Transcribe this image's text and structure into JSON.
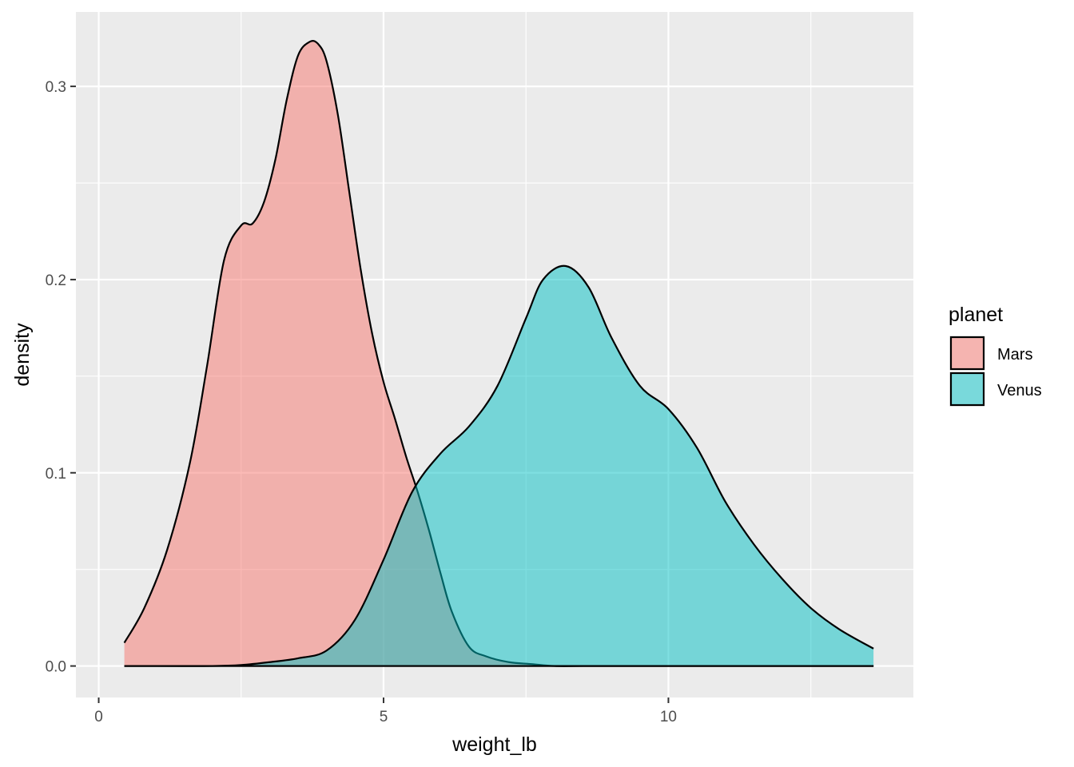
{
  "chart_data": {
    "type": "area",
    "subtype": "density",
    "title": "",
    "xlabel": "weight_lb",
    "ylabel": "density",
    "xlim": [
      -0.4,
      14.3
    ],
    "ylim": [
      -0.0163,
      0.3385
    ],
    "x_ticks": [
      0,
      5,
      10
    ],
    "x_tick_labels": [
      "0",
      "5",
      "10"
    ],
    "x_minor_ticks": [
      2.5,
      7.5,
      12.5
    ],
    "y_ticks": [
      0.0,
      0.1,
      0.2,
      0.3
    ],
    "y_tick_labels": [
      "0.0",
      "0.1",
      "0.2",
      "0.3"
    ],
    "y_minor_ticks": [
      0.05,
      0.15,
      0.25
    ],
    "grid": true,
    "legend": {
      "title": "planet",
      "position": "right"
    },
    "series": [
      {
        "name": "Mars",
        "color": "#F8766D",
        "x": [
          0.45,
          0.8,
          1.2,
          1.6,
          1.9,
          2.2,
          2.5,
          2.7,
          2.9,
          3.1,
          3.3,
          3.5,
          3.7,
          3.85,
          4.0,
          4.2,
          4.4,
          4.6,
          4.8,
          5.0,
          5.2,
          5.4,
          5.6,
          5.8,
          6.0,
          6.2,
          6.5,
          6.8,
          7.2,
          7.6,
          8.0,
          8.5,
          9.0,
          10.0,
          11.0,
          12.0,
          13.6
        ],
        "values": [
          0.012,
          0.03,
          0.06,
          0.105,
          0.155,
          0.21,
          0.228,
          0.229,
          0.24,
          0.262,
          0.293,
          0.316,
          0.323,
          0.322,
          0.313,
          0.285,
          0.245,
          0.205,
          0.172,
          0.147,
          0.128,
          0.108,
          0.09,
          0.07,
          0.048,
          0.028,
          0.01,
          0.005,
          0.002,
          0.001,
          0.0,
          0.0,
          0.0,
          0.0,
          0.0,
          0.0,
          0.0
        ]
      },
      {
        "name": "Venus",
        "color": "#00BFC4",
        "x": [
          0.45,
          1.0,
          2.0,
          2.5,
          3.0,
          3.5,
          4.0,
          4.5,
          5.0,
          5.5,
          6.0,
          6.5,
          7.0,
          7.5,
          7.8,
          8.2,
          8.6,
          9.0,
          9.5,
          10.0,
          10.5,
          11.0,
          11.5,
          12.0,
          12.5,
          13.0,
          13.6
        ],
        "values": [
          0.0,
          0.0,
          0.0,
          0.0005,
          0.002,
          0.004,
          0.008,
          0.024,
          0.055,
          0.09,
          0.11,
          0.124,
          0.145,
          0.18,
          0.2,
          0.207,
          0.196,
          0.17,
          0.145,
          0.133,
          0.113,
          0.085,
          0.063,
          0.045,
          0.03,
          0.019,
          0.009
        ]
      }
    ]
  }
}
